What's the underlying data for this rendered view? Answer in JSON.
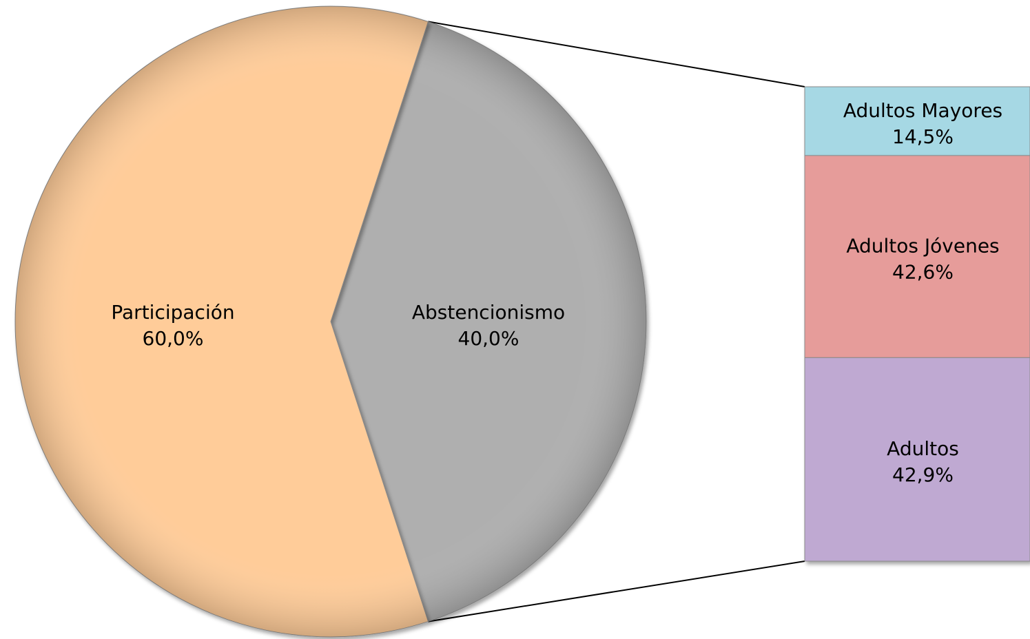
{
  "chart_data": {
    "type": "bar-of-pie",
    "pie": {
      "slices": [
        {
          "label": "Participación",
          "value": 60.0,
          "value_label": "60,0%",
          "color": "#FFCC99"
        },
        {
          "label": "Abstencionismo",
          "value": 40.0,
          "value_label": "40,0%",
          "color": "#AFAFAF",
          "exploded_to_bar": true
        }
      ]
    },
    "bar": {
      "segments": [
        {
          "label": "Adultos Mayores",
          "value": 14.5,
          "value_label": "14,5%",
          "color": "#A6D8E4"
        },
        {
          "label": "Adultos Jóvenes",
          "value": 42.6,
          "value_label": "42,6%",
          "color": "#E69C9A"
        },
        {
          "label": "Adultos",
          "value": 42.9,
          "value_label": "42,9%",
          "color": "#BFA9D2"
        }
      ]
    },
    "legend": "none",
    "grid": false
  }
}
